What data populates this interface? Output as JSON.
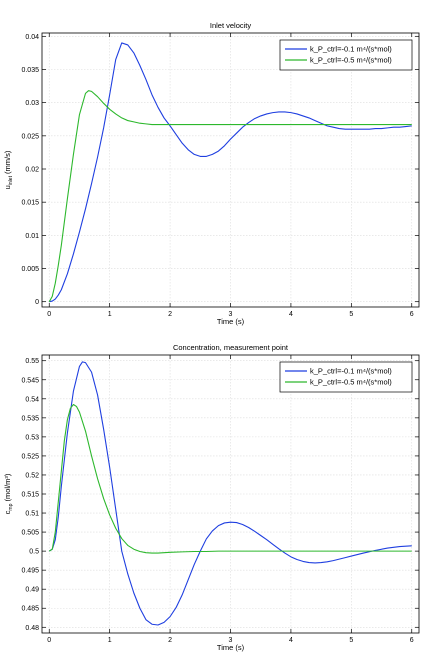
{
  "chart_data": [
    {
      "type": "line",
      "title": "Inlet velocity",
      "xlabel": "Time (s)",
      "ylabel": "u_inlet (mm/s)",
      "ylabel_main": "u",
      "ylabel_sub": "inlet",
      "ylabel_rest": " (mm/s)",
      "xlim": [
        -0.12,
        6.12
      ],
      "ylim": [
        -0.0008,
        0.0405
      ],
      "xticks": [
        0,
        1,
        2,
        3,
        4,
        5,
        6
      ],
      "xtick_labels": [
        "0",
        "1",
        "2",
        "3",
        "4",
        "5",
        "6"
      ],
      "yticks": [
        0,
        0.005,
        0.01,
        0.015,
        0.02,
        0.025,
        0.03,
        0.035,
        0.04
      ],
      "ytick_labels": [
        "0",
        "0.005",
        "0.01",
        "0.015",
        "0.02",
        "0.025",
        "0.03",
        "0.035",
        "0.04"
      ],
      "grid": true,
      "legend_position": "top-right",
      "series": [
        {
          "name": "k_P_ctrl=-0.1 m⁴/(s*mol)",
          "color": "#1f3fe0",
          "x": [
            0,
            0.05,
            0.1,
            0.15,
            0.2,
            0.3,
            0.4,
            0.5,
            0.6,
            0.7,
            0.8,
            0.9,
            1.0,
            1.1,
            1.2,
            1.3,
            1.4,
            1.5,
            1.6,
            1.7,
            1.8,
            1.9,
            2.0,
            2.1,
            2.2,
            2.3,
            2.4,
            2.5,
            2.6,
            2.7,
            2.8,
            2.9,
            3.0,
            3.1,
            3.2,
            3.3,
            3.4,
            3.5,
            3.6,
            3.7,
            3.8,
            3.9,
            4.0,
            4.1,
            4.2,
            4.3,
            4.4,
            4.5,
            4.6,
            4.7,
            4.8,
            4.9,
            5.0,
            5.1,
            5.2,
            5.3,
            5.4,
            5.5,
            5.6,
            5.7,
            5.8,
            5.9,
            6.0
          ],
          "y": [
            0,
            0.0001,
            0.0004,
            0.001,
            0.0018,
            0.0042,
            0.0072,
            0.0105,
            0.014,
            0.0178,
            0.0218,
            0.0262,
            0.0312,
            0.0365,
            0.039,
            0.0387,
            0.0375,
            0.0356,
            0.0335,
            0.0312,
            0.0293,
            0.0277,
            0.0265,
            0.0252,
            0.0239,
            0.0229,
            0.0222,
            0.0219,
            0.0219,
            0.0222,
            0.0227,
            0.0235,
            0.0245,
            0.0254,
            0.0263,
            0.027,
            0.0276,
            0.028,
            0.0283,
            0.0285,
            0.0286,
            0.0286,
            0.0285,
            0.0283,
            0.028,
            0.0277,
            0.0273,
            0.0269,
            0.0265,
            0.0263,
            0.0261,
            0.026,
            0.026,
            0.026,
            0.026,
            0.026,
            0.0261,
            0.0261,
            0.0262,
            0.0263,
            0.0263,
            0.0264,
            0.0265
          ]
        },
        {
          "name": "k_P_ctrl=-0.5 m⁴/(s*mol)",
          "color": "#2db82d",
          "x": [
            0,
            0.05,
            0.1,
            0.15,
            0.2,
            0.3,
            0.4,
            0.5,
            0.6,
            0.65,
            0.7,
            0.8,
            0.9,
            1.0,
            1.1,
            1.2,
            1.3,
            1.4,
            1.5,
            1.6,
            1.7,
            1.8,
            1.9,
            2.0,
            2.2,
            2.4,
            2.6,
            2.8,
            3.0,
            3.5,
            4.0,
            4.5,
            5.0,
            5.5,
            6.0
          ],
          "y": [
            0,
            0.0008,
            0.0028,
            0.0055,
            0.0085,
            0.0155,
            0.0222,
            0.0282,
            0.0314,
            0.0318,
            0.0317,
            0.0309,
            0.0299,
            0.029,
            0.0283,
            0.0277,
            0.0273,
            0.0271,
            0.0269,
            0.0268,
            0.0267,
            0.0267,
            0.0267,
            0.0267,
            0.0267,
            0.0267,
            0.0267,
            0.0267,
            0.0267,
            0.0267,
            0.0267,
            0.0267,
            0.0267,
            0.0267,
            0.0267
          ]
        }
      ]
    },
    {
      "type": "line",
      "title": "Concentration, measurement point",
      "xlabel": "Time (s)",
      "ylabel": "c_mp (mol/m³)",
      "ylabel_main": "c",
      "ylabel_sub": "mp",
      "ylabel_rest": " (mol/m³)",
      "xlim": [
        -0.12,
        6.12
      ],
      "ylim": [
        0.4785,
        0.5515
      ],
      "xticks": [
        0,
        1,
        2,
        3,
        4,
        5,
        6
      ],
      "xtick_labels": [
        "0",
        "1",
        "2",
        "3",
        "4",
        "5",
        "6"
      ],
      "yticks": [
        0.48,
        0.485,
        0.49,
        0.495,
        0.5,
        0.505,
        0.51,
        0.515,
        0.52,
        0.525,
        0.53,
        0.535,
        0.54,
        0.545,
        0.55
      ],
      "ytick_labels": [
        "0.48",
        "0.485",
        "0.49",
        "0.495",
        "0.5",
        "0.505",
        "0.51",
        "0.515",
        "0.52",
        "0.525",
        "0.53",
        "0.535",
        "0.54",
        "0.545",
        "0.55"
      ],
      "grid": true,
      "legend_position": "top-right",
      "series": [
        {
          "name": "k_P_ctrl=-0.1 m⁴/(s*mol)",
          "color": "#1f3fe0",
          "x": [
            0,
            0.05,
            0.1,
            0.15,
            0.2,
            0.3,
            0.4,
            0.5,
            0.55,
            0.6,
            0.7,
            0.8,
            0.9,
            1.0,
            1.1,
            1.2,
            1.3,
            1.4,
            1.5,
            1.6,
            1.7,
            1.8,
            1.9,
            2.0,
            2.1,
            2.2,
            2.3,
            2.4,
            2.5,
            2.6,
            2.7,
            2.8,
            2.9,
            3.0,
            3.1,
            3.2,
            3.3,
            3.4,
            3.5,
            3.6,
            3.7,
            3.8,
            3.9,
            4.0,
            4.1,
            4.2,
            4.3,
            4.4,
            4.5,
            4.6,
            4.7,
            4.8,
            4.9,
            5.0,
            5.2,
            5.4,
            5.6,
            5.8,
            6.0
          ],
          "y": [
            0.5,
            0.5005,
            0.503,
            0.509,
            0.517,
            0.531,
            0.542,
            0.5485,
            0.5497,
            0.5495,
            0.547,
            0.541,
            0.532,
            0.522,
            0.511,
            0.5,
            0.494,
            0.489,
            0.485,
            0.482,
            0.4808,
            0.4806,
            0.4813,
            0.4828,
            0.4852,
            0.4885,
            0.4925,
            0.4965,
            0.5,
            0.5032,
            0.5053,
            0.5067,
            0.5074,
            0.5076,
            0.5075,
            0.507,
            0.5062,
            0.5052,
            0.5041,
            0.503,
            0.5018,
            0.5006,
            0.4995,
            0.4985,
            0.4978,
            0.4973,
            0.497,
            0.4969,
            0.497,
            0.4972,
            0.4975,
            0.4979,
            0.4983,
            0.4987,
            0.4995,
            0.5002,
            0.5008,
            0.5012,
            0.5014
          ]
        },
        {
          "name": "k_P_ctrl=-0.5 m⁴/(s*mol)",
          "color": "#2db82d",
          "x": [
            0,
            0.05,
            0.1,
            0.15,
            0.2,
            0.25,
            0.3,
            0.35,
            0.4,
            0.45,
            0.5,
            0.6,
            0.7,
            0.8,
            0.9,
            1.0,
            1.1,
            1.2,
            1.3,
            1.4,
            1.5,
            1.6,
            1.7,
            1.8,
            1.9,
            2.0,
            2.2,
            2.4,
            2.6,
            2.8,
            3.0,
            3.5,
            4.0,
            4.5,
            5.0,
            5.5,
            6.0
          ],
          "y": [
            0.5,
            0.5005,
            0.505,
            0.513,
            0.521,
            0.529,
            0.5345,
            0.5375,
            0.5385,
            0.538,
            0.5365,
            0.5315,
            0.525,
            0.519,
            0.5138,
            0.5095,
            0.506,
            0.5033,
            0.5015,
            0.5005,
            0.4999,
            0.4996,
            0.4995,
            0.4995,
            0.4996,
            0.4997,
            0.4998,
            0.4999,
            0.4999,
            0.5,
            0.5,
            0.5,
            0.5,
            0.5,
            0.5,
            0.5,
            0.5
          ]
        }
      ]
    }
  ]
}
